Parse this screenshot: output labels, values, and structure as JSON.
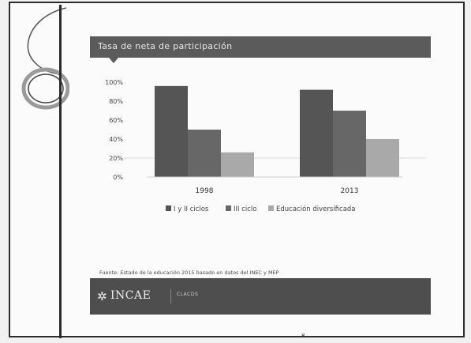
{
  "slide": {
    "title": "Tasa de neta de participación",
    "source": "Fuente: Estado de la educación 2015 basado en datos del INEC y MEP",
    "footer": {
      "logo_text": "INCAE",
      "partner": "CLACDS"
    },
    "page_number": "8"
  },
  "colors": {
    "title_bar": "#5b5b5b",
    "footer": "#4e4e4e"
  },
  "chart_data": {
    "type": "bar",
    "title": "Tasa de neta de participación",
    "xlabel": "",
    "ylabel": "",
    "categories": [
      "1998",
      "2013"
    ],
    "series": [
      {
        "name": "I y II ciclos",
        "values": [
          96,
          92
        ],
        "color": "#555555"
      },
      {
        "name": "III ciclo",
        "values": [
          50,
          70
        ],
        "color": "#676767"
      },
      {
        "name": "Educación diversificada",
        "values": [
          26,
          40
        ],
        "color": "#a9a9a9"
      }
    ],
    "ylim": [
      0,
      100
    ],
    "yticks": [
      0,
      20,
      40,
      60,
      80,
      100
    ],
    "ytick_labels": [
      "0%",
      "20%",
      "40%",
      "60%",
      "80%",
      "100%"
    ],
    "grid": true,
    "legend": "bottom"
  }
}
